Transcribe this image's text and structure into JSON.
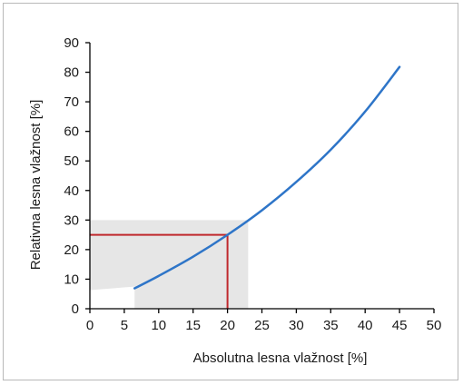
{
  "chart_data": {
    "type": "line",
    "title": "",
    "xlabel": "Absolutna lesna vlažnost [%]",
    "ylabel": "Relativna lesna vlažnost [%]",
    "xlim": [
      0,
      50
    ],
    "ylim": [
      0,
      90
    ],
    "x_ticks": [
      0,
      5,
      10,
      15,
      20,
      25,
      30,
      35,
      40,
      45,
      50
    ],
    "y_ticks": [
      0,
      10,
      20,
      30,
      40,
      50,
      60,
      70,
      80,
      90
    ],
    "grid": false,
    "legend": "none",
    "series": [
      {
        "color": "#2e75c8",
        "x": [
          6.5,
          10,
          15,
          20,
          25,
          30,
          35,
          40,
          45
        ],
        "y": [
          6.9,
          11.1,
          17.6,
          25.0,
          33.3,
          42.9,
          53.8,
          66.7,
          81.8
        ]
      }
    ],
    "highlight_region": {
      "color": "#e6e6e6",
      "x": [
        6.5,
        23
      ],
      "y_top": 30
    },
    "reference_point": {
      "x": 20,
      "y": 25,
      "color": "#c0282d"
    },
    "colors": {
      "axis": "#000000",
      "frame": "#b8b8b8"
    }
  }
}
